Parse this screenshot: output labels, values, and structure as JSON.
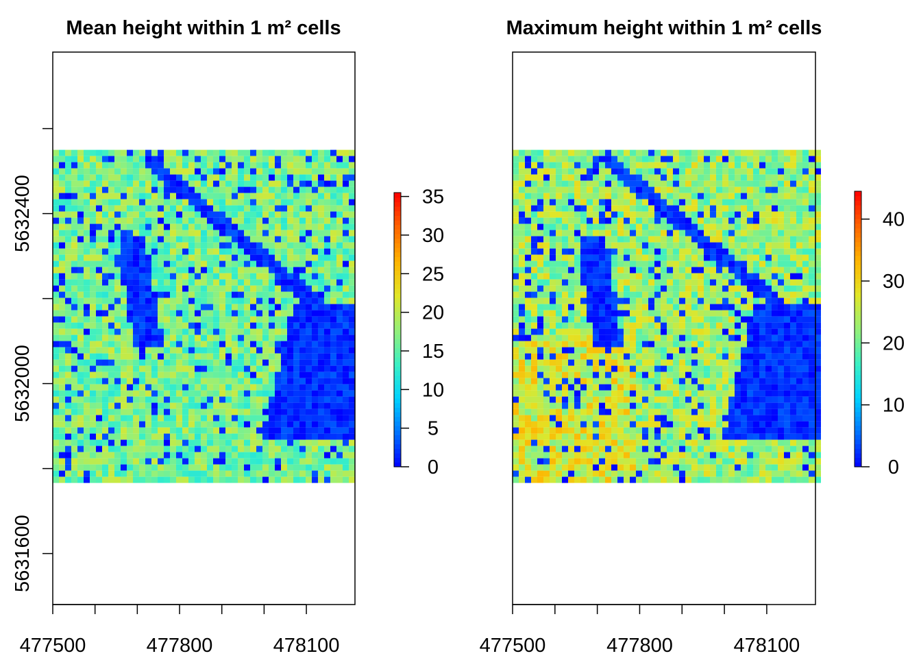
{
  "chart_data": [
    {
      "type": "heatmap",
      "title": "Mean height within 1 m² cells",
      "xlabel": "",
      "ylabel": "",
      "x_ticks": [
        477500,
        477600,
        477700,
        477800,
        477900,
        478000,
        478100
      ],
      "x_tick_labels": [
        "477500",
        "",
        "",
        "477800",
        "",
        "",
        "478100"
      ],
      "y_ticks": [
        5631600,
        5631800,
        5632000,
        5632200,
        5632400,
        5632600
      ],
      "y_tick_labels": [
        "5631600",
        "",
        "5632000",
        "",
        "5632400",
        ""
      ],
      "xlim": [
        477500,
        478215
      ],
      "ylim": [
        5631480,
        5632780
      ],
      "raster_extent": {
        "x": [
          477500,
          478215
        ],
        "y": [
          5631780,
          5632550
        ]
      },
      "colorbar": {
        "min": 0,
        "max": 35.5,
        "ticks": [
          0,
          5,
          10,
          15,
          20,
          25,
          30,
          35
        ],
        "tick_labels": [
          "0",
          "5",
          "10",
          "15",
          "20",
          "25",
          "30",
          "35"
        ]
      },
      "colormap": [
        "#0000ff",
        "#0072ff",
        "#00d2ff",
        "#3cf0c3",
        "#96f078",
        "#e1e628",
        "#ffb400",
        "#ff6400",
        "#ff0000"
      ],
      "grid": false
    },
    {
      "type": "heatmap",
      "title": "Maximum height within 1 m² cells",
      "xlabel": "",
      "ylabel": "",
      "x_ticks": [
        477500,
        477600,
        477700,
        477800,
        477900,
        478000,
        478100
      ],
      "x_tick_labels": [
        "477500",
        "",
        "",
        "477800",
        "",
        "",
        "478100"
      ],
      "y_ticks": [],
      "y_tick_labels": [],
      "xlim": [
        477500,
        478215
      ],
      "ylim": [
        5631480,
        5632780
      ],
      "raster_extent": {
        "x": [
          477500,
          478215
        ],
        "y": [
          5631780,
          5632550
        ]
      },
      "colorbar": {
        "min": 0,
        "max": 44.5,
        "ticks": [
          0,
          10,
          20,
          30,
          40
        ],
        "tick_labels": [
          "0",
          "10",
          "20",
          "30",
          "40"
        ]
      },
      "colormap": [
        "#0000ff",
        "#0072ff",
        "#00d2ff",
        "#3cf0c3",
        "#96f078",
        "#e1e628",
        "#ffb400",
        "#ff6400",
        "#ff0000"
      ],
      "grid": false
    }
  ]
}
